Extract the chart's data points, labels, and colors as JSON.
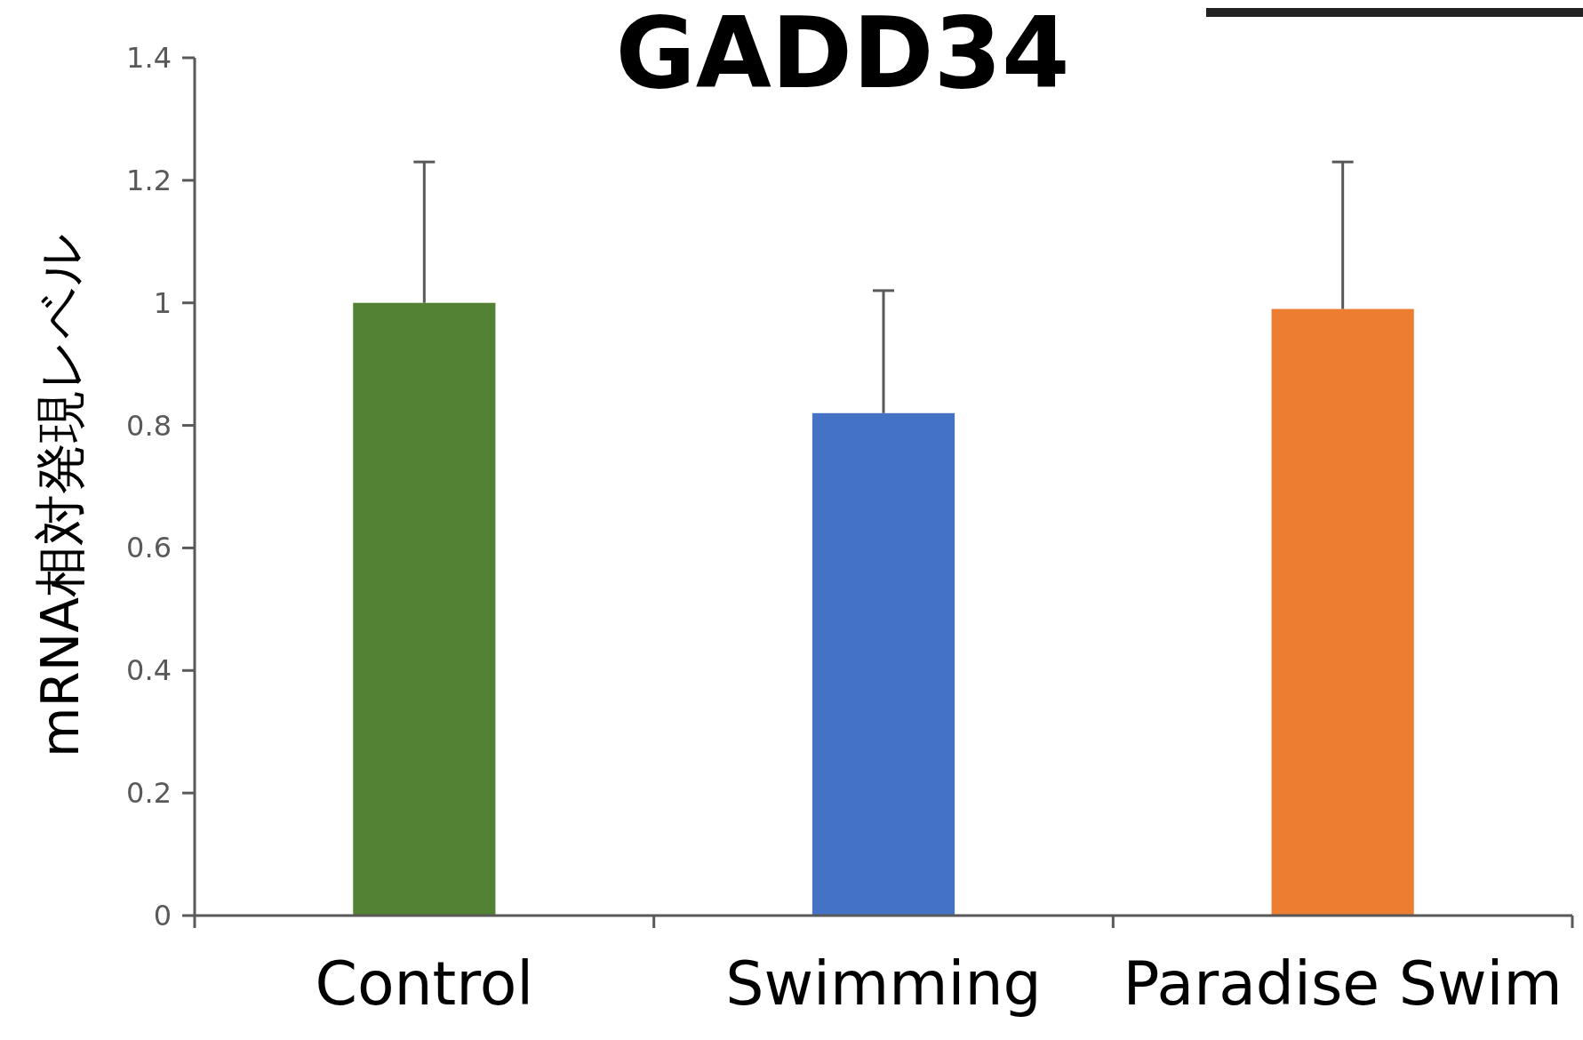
{
  "chart_data": {
    "type": "bar",
    "title": "GADD34",
    "ylabel": "mRNA相対発現レベル",
    "categories": [
      "Control",
      "Swimming",
      "Paradise Swim"
    ],
    "values": [
      1.0,
      0.82,
      0.99
    ],
    "colors": [
      "#548235",
      "#4472c4",
      "#ed7d31"
    ],
    "errors": [
      0.23,
      0.2,
      0.24
    ],
    "ylim": [
      0,
      1.4
    ],
    "yticks": [
      0,
      0.2,
      0.4,
      0.6,
      0.8,
      1,
      1.2,
      1.4
    ],
    "grid": false
  }
}
